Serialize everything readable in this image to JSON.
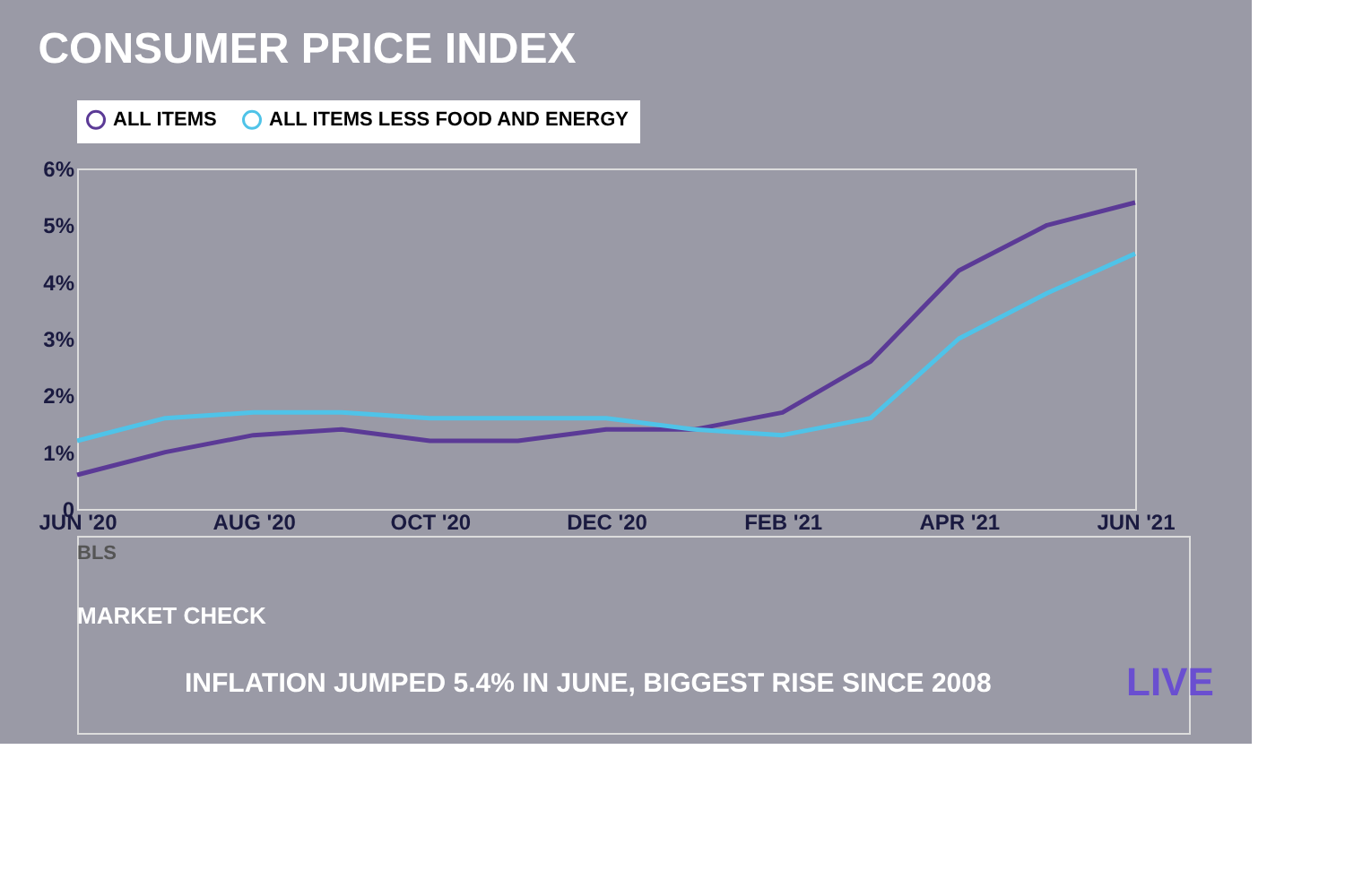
{
  "chart_data": {
    "type": "line",
    "title": "CONSUMER PRICE INDEX",
    "categories": [
      "JUN '20",
      null,
      "AUG '20",
      null,
      "OCT '20",
      null,
      "DEC '20",
      null,
      "FEB '21",
      null,
      "APR '21",
      null,
      "JUN '21"
    ],
    "series": [
      {
        "name": "ALL ITEMS",
        "color": "#5b3a96",
        "values": [
          0.6,
          1.0,
          1.3,
          1.4,
          1.2,
          1.2,
          1.4,
          1.4,
          1.7,
          2.6,
          4.2,
          5.0,
          5.4
        ]
      },
      {
        "name": "ALL ITEMS LESS FOOD AND ENERGY",
        "color": "#4fc3e8",
        "values": [
          1.2,
          1.6,
          1.7,
          1.7,
          1.6,
          1.6,
          1.6,
          1.4,
          1.3,
          1.6,
          3.0,
          3.8,
          4.5
        ]
      }
    ],
    "ylim": [
      0,
      6
    ],
    "yticks": [
      0,
      {
        "value": 1,
        "label": "1%"
      },
      {
        "value": 2,
        "label": "2%"
      },
      {
        "value": 3,
        "label": "3%"
      },
      {
        "value": 4,
        "label": "4%"
      },
      {
        "value": 5,
        "label": "5%"
      },
      {
        "value": 6,
        "label": "6%"
      }
    ],
    "grid": false,
    "legend": "top left",
    "marker": "none",
    "line_style": "solid",
    "annotations": [
      "BLS",
      "MARKET CHECK",
      "INFLATION JUMPED 5.4% IN JUNE, BIGGEST RISE SINCE 2008",
      "LIVE"
    ]
  }
}
